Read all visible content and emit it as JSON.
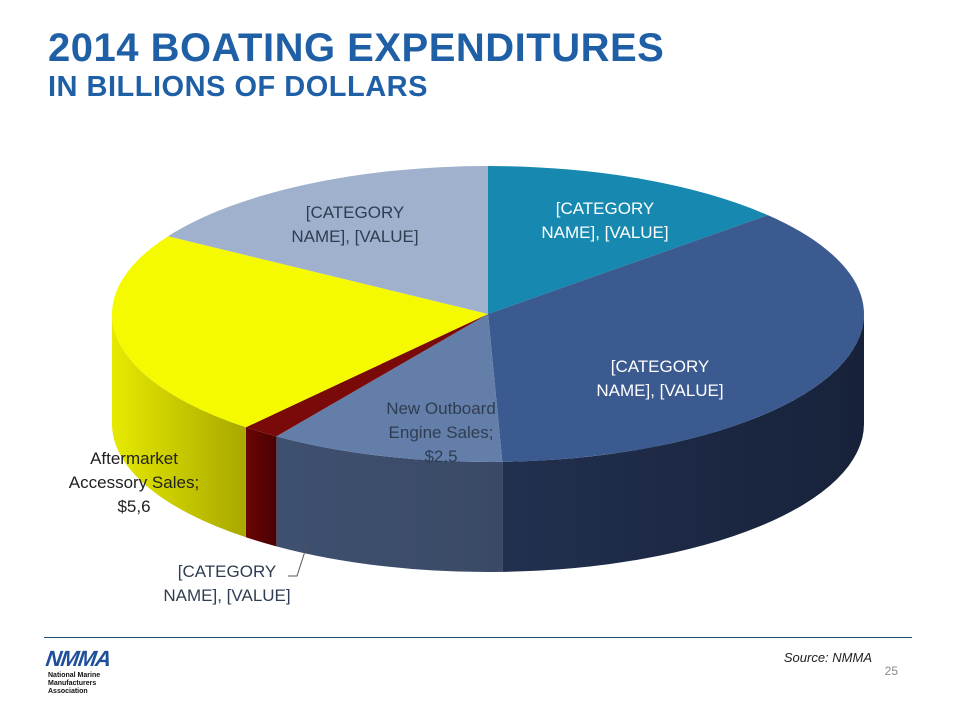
{
  "title": "2014 BOATING EXPENDITURES",
  "subtitle": "IN BILLIONS OF DOLLARS",
  "source": "Source: NMMA",
  "page_number": "25",
  "logo": {
    "mark": "NMMA",
    "line1": "National Marine",
    "line2": "Manufacturers Association"
  },
  "chart_data": {
    "type": "pie",
    "title": "",
    "slices": [
      {
        "name": "[CATEGORY NAME]",
        "label_lines": [
          "[CATEGORY",
          "NAME], [VALUE]"
        ],
        "value": 3.3,
        "color": "#1789b0"
      },
      {
        "name": "[CATEGORY NAME]",
        "label_lines": [
          "[CATEGORY",
          "NAME], [VALUE]"
        ],
        "value": 8.9,
        "color": "#3b5a8f"
      },
      {
        "name": "New Outboard Engine Sales",
        "label_lines": [
          "New Outboard",
          "Engine Sales;",
          "$2,5"
        ],
        "value": 2.5,
        "color": "#637ea8"
      },
      {
        "name": "[CATEGORY NAME]",
        "label_lines": [
          "[CATEGORY",
          "NAME], [VALUE]"
        ],
        "value": 0.4,
        "color": "#7a0a0a"
      },
      {
        "name": "Aftermarket Accessory Sales",
        "label_lines": [
          "Aftermarket",
          "Accessory Sales;",
          "$5,6"
        ],
        "value": 5.6,
        "color": "#f5fa00"
      },
      {
        "name": "[CATEGORY NAME]",
        "label_lines": [
          "[CATEGORY",
          "NAME], [VALUE]"
        ],
        "value": 4.0,
        "color": "#9fb1cc"
      }
    ]
  }
}
